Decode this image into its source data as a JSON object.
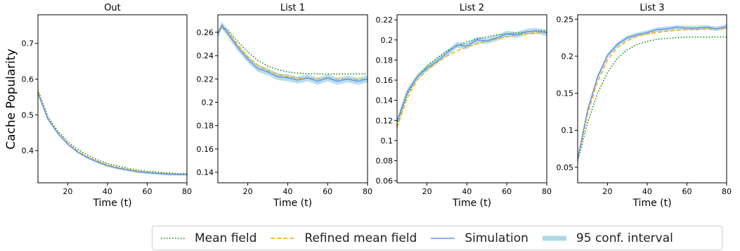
{
  "figure": {
    "ylabel": "Cache Popularity"
  },
  "chart_data": [
    {
      "type": "line",
      "title": "Out",
      "xlabel": "Time (t)",
      "ylabel": "Cache Popularity",
      "xlim": [
        5,
        80
      ],
      "ylim": [
        0.31,
        0.78
      ],
      "xticks": [
        20,
        40,
        60,
        80
      ],
      "yticks": [
        0.4,
        0.5,
        0.6,
        0.7
      ],
      "x": [
        5,
        10,
        15,
        20,
        25,
        30,
        35,
        40,
        45,
        50,
        55,
        60,
        65,
        70,
        75,
        80
      ],
      "series": [
        {
          "name": "Mean field",
          "values": [
            0.57,
            0.495,
            0.455,
            0.425,
            0.403,
            0.387,
            0.374,
            0.364,
            0.357,
            0.351,
            0.346,
            0.342,
            0.34,
            0.338,
            0.336,
            0.335
          ]
        },
        {
          "name": "Refined mean field",
          "values": [
            0.565,
            0.49,
            0.45,
            0.42,
            0.398,
            0.382,
            0.37,
            0.36,
            0.353,
            0.347,
            0.343,
            0.339,
            0.337,
            0.335,
            0.334,
            0.333
          ]
        },
        {
          "name": "Simulation",
          "values": [
            0.56,
            0.488,
            0.448,
            0.418,
            0.396,
            0.38,
            0.368,
            0.358,
            0.351,
            0.346,
            0.341,
            0.338,
            0.336,
            0.334,
            0.333,
            0.333
          ]
        }
      ],
      "ci_halfwidth": 0.003
    },
    {
      "type": "line",
      "title": "List 1",
      "xlabel": "Time (t)",
      "xlim": [
        5,
        80
      ],
      "ylim": [
        0.131,
        0.275
      ],
      "xticks": [
        20,
        40,
        60,
        80
      ],
      "yticks": [
        0.14,
        0.16,
        0.18,
        0.2,
        0.22,
        0.24,
        0.26
      ],
      "x": [
        5,
        7,
        10,
        15,
        20,
        25,
        30,
        35,
        40,
        45,
        50,
        55,
        60,
        65,
        70,
        75,
        80
      ],
      "series": [
        {
          "name": "Mean field",
          "values": [
            0.26,
            0.265,
            0.262,
            0.252,
            0.243,
            0.236,
            0.231,
            0.228,
            0.226,
            0.225,
            0.2245,
            0.2243,
            0.2242,
            0.2242,
            0.2242,
            0.2242,
            0.2242
          ]
        },
        {
          "name": "Refined mean field",
          "values": [
            0.259,
            0.264,
            0.26,
            0.249,
            0.239,
            0.232,
            0.227,
            0.224,
            0.222,
            0.221,
            0.2205,
            0.22,
            0.22,
            0.2198,
            0.2197,
            0.2196,
            0.2196
          ]
        },
        {
          "name": "Simulation",
          "values": [
            0.258,
            0.266,
            0.259,
            0.247,
            0.237,
            0.229,
            0.226,
            0.222,
            0.221,
            0.219,
            0.221,
            0.218,
            0.221,
            0.218,
            0.22,
            0.218,
            0.22
          ]
        }
      ],
      "ci_halfwidth": 0.003
    },
    {
      "type": "line",
      "title": "List 2",
      "xlabel": "Time (t)",
      "xlim": [
        5,
        80
      ],
      "ylim": [
        0.058,
        0.225
      ],
      "xticks": [
        20,
        40,
        60,
        80
      ],
      "yticks": [
        0.06,
        0.08,
        0.1,
        0.12,
        0.14,
        0.16,
        0.18,
        0.2,
        0.22
      ],
      "x": [
        5,
        10,
        15,
        20,
        25,
        30,
        35,
        40,
        45,
        50,
        55,
        60,
        65,
        70,
        75,
        80
      ],
      "series": [
        {
          "name": "Mean field",
          "values": [
            0.116,
            0.145,
            0.163,
            0.174,
            0.182,
            0.189,
            0.194,
            0.198,
            0.201,
            0.203,
            0.205,
            0.206,
            0.207,
            0.208,
            0.209,
            0.209
          ]
        },
        {
          "name": "Refined mean field",
          "values": [
            0.113,
            0.142,
            0.16,
            0.17,
            0.178,
            0.184,
            0.189,
            0.193,
            0.196,
            0.199,
            0.201,
            0.203,
            0.205,
            0.206,
            0.207,
            0.208
          ]
        },
        {
          "name": "Simulation",
          "values": [
            0.119,
            0.148,
            0.163,
            0.172,
            0.179,
            0.187,
            0.195,
            0.194,
            0.2,
            0.199,
            0.202,
            0.206,
            0.205,
            0.208,
            0.209,
            0.207
          ]
        }
      ],
      "ci_halfwidth": 0.003
    },
    {
      "type": "line",
      "title": "List 3",
      "xlabel": "Time (t)",
      "xlim": [
        5,
        80
      ],
      "ylim": [
        0.029,
        0.256
      ],
      "xticks": [
        20,
        40,
        60,
        80
      ],
      "yticks": [
        0.05,
        0.1,
        0.15,
        0.2,
        0.25
      ],
      "x": [
        5,
        10,
        15,
        20,
        25,
        30,
        35,
        40,
        45,
        50,
        55,
        60,
        65,
        70,
        75,
        80
      ],
      "series": [
        {
          "name": "Mean field",
          "values": [
            0.058,
            0.11,
            0.15,
            0.178,
            0.197,
            0.209,
            0.216,
            0.22,
            0.223,
            0.224,
            0.225,
            0.226,
            0.226,
            0.226,
            0.226,
            0.226
          ]
        },
        {
          "name": "Refined mean field",
          "values": [
            0.06,
            0.122,
            0.166,
            0.195,
            0.212,
            0.221,
            0.227,
            0.23,
            0.232,
            0.234,
            0.235,
            0.236,
            0.236,
            0.237,
            0.237,
            0.237
          ]
        },
        {
          "name": "Simulation",
          "values": [
            0.061,
            0.127,
            0.172,
            0.201,
            0.216,
            0.225,
            0.229,
            0.232,
            0.236,
            0.237,
            0.239,
            0.238,
            0.238,
            0.239,
            0.237,
            0.24
          ]
        }
      ],
      "ci_halfwidth": 0.003
    }
  ],
  "legend": {
    "placement": "bottom",
    "items": [
      {
        "label": "Mean field",
        "color": "#008000",
        "style": "dotted"
      },
      {
        "label": "Refined mean field",
        "color": "#ffa500",
        "style": "dashed"
      },
      {
        "label": "Simulation",
        "color": "#6495ed",
        "style": "solid"
      },
      {
        "label": "95 conf. interval",
        "color": "#add8e6",
        "style": "band"
      }
    ]
  },
  "colors": {
    "mean_field": "#008000",
    "refined": "#ffa500",
    "simulation": "#6495ed",
    "ci": "#add8e6",
    "axis": "#000000"
  }
}
